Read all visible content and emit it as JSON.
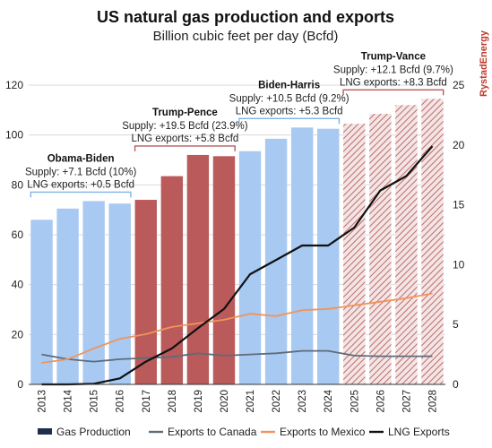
{
  "chart_data": {
    "type": "bar",
    "title": "US natural gas production and exports",
    "subtitle": "Billion cubic feet per day (Bcfd)",
    "brand": "RystadEnergy",
    "categories": [
      "2013",
      "2014",
      "2015",
      "2016",
      "2017",
      "2018",
      "2019",
      "2020",
      "2021",
      "2022",
      "2023",
      "2024",
      "2025",
      "2026",
      "2027",
      "2028"
    ],
    "left_axis": {
      "min": 0,
      "max": 120,
      "ticks": [
        "0",
        "20",
        "40",
        "60",
        "80",
        "100",
        "120"
      ]
    },
    "right_axis": {
      "min": 0,
      "max": 25,
      "ticks": [
        "0",
        "5",
        "10",
        "15",
        "20",
        "25"
      ]
    },
    "bars": {
      "name": "Gas Production",
      "axis": "left",
      "values": [
        66,
        70.5,
        73.5,
        72.5,
        74,
        83.5,
        92,
        91.5,
        93.5,
        98.5,
        103,
        102.5,
        104.5,
        108.5,
        112,
        114.5
      ],
      "colors": [
        "#a8c9f2",
        "#a8c9f2",
        "#a8c9f2",
        "#a8c9f2",
        "#bb5a5a",
        "#bb5a5a",
        "#bb5a5a",
        "#bb5a5a",
        "#a8c9f2",
        "#a8c9f2",
        "#a8c9f2",
        "#a8c9f2",
        "hatch",
        "hatch",
        "hatch",
        "hatch"
      ]
    },
    "series": [
      {
        "name": "Exports to Canada",
        "axis": "right",
        "color": "#5f6b78",
        "values": [
          2.5,
          2.1,
          1.9,
          2.1,
          2.2,
          2.3,
          2.6,
          2.4,
          2.5,
          2.6,
          2.8,
          2.8,
          2.4,
          2.35,
          2.35,
          2.35
        ]
      },
      {
        "name": "Exports to Mexico",
        "axis": "right",
        "color": "#f0945a",
        "values": [
          1.8,
          2.1,
          3.0,
          3.8,
          4.2,
          4.8,
          5.1,
          5.4,
          5.9,
          5.7,
          6.2,
          6.3,
          6.6,
          6.9,
          7.2,
          7.6
        ]
      },
      {
        "name": "LNG Exports",
        "axis": "right",
        "color": "#111111",
        "values": [
          0,
          0,
          0.05,
          0.5,
          1.9,
          3.0,
          4.7,
          6.3,
          9.2,
          10.4,
          11.6,
          11.6,
          13.1,
          16.2,
          17.4,
          19.9
        ]
      }
    ],
    "legend": [
      "Gas Production",
      "Exports to Canada",
      "Exports to Mexico",
      "LNG Exports"
    ],
    "legend_position": "bottom",
    "eras": [
      {
        "name": "Obama-Biden",
        "supply": "Supply: +7.1 Bcfd (10%)",
        "lng": "LNG exports: +0.5 Bcfd",
        "color": "#7fb3e6",
        "start": 0,
        "end": 3
      },
      {
        "name": "Trump-Pence",
        "supply": "Supply: +19.5 Bcfd (23.9%)",
        "lng": "LNG exports: +5.8 Bcfd",
        "color": "#bb5a5a",
        "start": 4,
        "end": 7
      },
      {
        "name": "Biden-Harris",
        "supply": "Supply: +10.5 Bcfd (9.2%)",
        "lng": "LNG exports: +5.3 Bcfd",
        "color": "#7fb3e6",
        "start": 8,
        "end": 11
      },
      {
        "name": "Trump-Vance",
        "supply": "Supply: +12.1 Bcfd (9.7%)",
        "lng": "LNG exports: +8.3 Bcfd",
        "color": "#bb5a5a",
        "start": 12,
        "end": 15
      }
    ]
  }
}
